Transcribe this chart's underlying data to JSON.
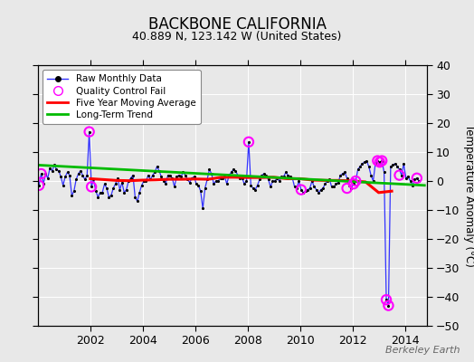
{
  "title": "BACKBONE CALIFORNIA",
  "subtitle": "40.889 N, 123.142 W (United States)",
  "ylabel": "Temperature Anomaly (°C)",
  "watermark": "Berkeley Earth",
  "xlim": [
    2000.0,
    2014.83
  ],
  "ylim": [
    -50,
    40
  ],
  "yticks": [
    -50,
    -40,
    -30,
    -20,
    -10,
    0,
    10,
    20,
    30,
    40
  ],
  "xticks": [
    2002,
    2004,
    2006,
    2008,
    2010,
    2012,
    2014
  ],
  "bg_color": "#e8e8e8",
  "raw_line_color": "#3333ff",
  "dot_color": "#000000",
  "qc_color": "#ff00ff",
  "moving_avg_color": "#ff0000",
  "trend_color": "#00bb00",
  "raw_x": [
    2000.042,
    2000.125,
    2000.208,
    2000.292,
    2000.375,
    2000.458,
    2000.542,
    2000.625,
    2000.708,
    2000.792,
    2000.875,
    2000.958,
    2001.042,
    2001.125,
    2001.208,
    2001.292,
    2001.375,
    2001.458,
    2001.542,
    2001.625,
    2001.708,
    2001.792,
    2001.875,
    2001.958,
    2002.042,
    2002.125,
    2002.208,
    2002.292,
    2002.375,
    2002.458,
    2002.542,
    2002.625,
    2002.708,
    2002.792,
    2002.875,
    2002.958,
    2003.042,
    2003.125,
    2003.208,
    2003.292,
    2003.375,
    2003.458,
    2003.542,
    2003.625,
    2003.708,
    2003.792,
    2003.875,
    2003.958,
    2004.042,
    2004.125,
    2004.208,
    2004.292,
    2004.375,
    2004.458,
    2004.542,
    2004.625,
    2004.708,
    2004.792,
    2004.875,
    2004.958,
    2005.042,
    2005.125,
    2005.208,
    2005.292,
    2005.375,
    2005.458,
    2005.542,
    2005.625,
    2005.708,
    2005.792,
    2005.875,
    2005.958,
    2006.042,
    2006.125,
    2006.208,
    2006.292,
    2006.375,
    2006.458,
    2006.542,
    2006.625,
    2006.708,
    2006.792,
    2006.875,
    2006.958,
    2007.042,
    2007.125,
    2007.208,
    2007.292,
    2007.375,
    2007.458,
    2007.542,
    2007.625,
    2007.708,
    2007.792,
    2007.875,
    2007.958,
    2008.042,
    2008.125,
    2008.208,
    2008.292,
    2008.375,
    2008.458,
    2008.542,
    2008.625,
    2008.708,
    2008.792,
    2008.875,
    2008.958,
    2009.042,
    2009.125,
    2009.208,
    2009.292,
    2009.375,
    2009.458,
    2009.542,
    2009.625,
    2009.708,
    2009.792,
    2009.875,
    2009.958,
    2010.042,
    2010.125,
    2010.208,
    2010.292,
    2010.375,
    2010.458,
    2010.542,
    2010.625,
    2010.708,
    2010.792,
    2010.875,
    2010.958,
    2011.042,
    2011.125,
    2011.208,
    2011.292,
    2011.375,
    2011.458,
    2011.542,
    2011.625,
    2011.708,
    2011.792,
    2011.875,
    2011.958,
    2012.042,
    2012.125,
    2012.208,
    2012.292,
    2012.375,
    2012.458,
    2012.542,
    2012.625,
    2012.708,
    2012.792,
    2012.875,
    2012.958,
    2013.042,
    2013.125,
    2013.208,
    2013.292,
    2013.375,
    2013.458,
    2013.542,
    2013.625,
    2013.708,
    2013.792,
    2013.875,
    2013.958,
    2014.042,
    2014.125,
    2014.208,
    2014.292,
    2014.375,
    2014.458,
    2014.542
  ],
  "raw_y": [
    -1.5,
    2.5,
    -1.0,
    2.5,
    1.0,
    4.5,
    3.5,
    5.5,
    4.0,
    3.5,
    1.5,
    -1.5,
    1.5,
    3.0,
    2.0,
    -5.0,
    -3.5,
    0.5,
    2.5,
    3.5,
    2.0,
    0.5,
    2.0,
    17.0,
    -2.0,
    0.5,
    -3.5,
    -5.5,
    -4.0,
    -4.0,
    -1.0,
    -2.5,
    -5.5,
    -5.0,
    -2.5,
    -1.0,
    1.0,
    -3.0,
    -0.5,
    -4.0,
    -3.0,
    0.0,
    1.0,
    2.0,
    -5.5,
    -7.0,
    -4.0,
    -1.5,
    0.0,
    0.0,
    2.0,
    0.5,
    2.0,
    3.0,
    5.0,
    3.5,
    1.5,
    0.0,
    -1.0,
    2.0,
    2.0,
    1.0,
    -2.0,
    1.5,
    2.0,
    1.5,
    3.0,
    2.0,
    0.5,
    -0.5,
    1.0,
    1.5,
    -1.0,
    -1.5,
    -3.5,
    -9.5,
    -2.5,
    0.5,
    4.0,
    2.5,
    -1.0,
    0.0,
    0.0,
    1.0,
    1.0,
    1.5,
    -1.0,
    2.0,
    3.0,
    4.0,
    3.5,
    2.0,
    1.0,
    1.0,
    -1.0,
    0.0,
    13.5,
    -1.5,
    -2.5,
    -3.0,
    -1.5,
    0.5,
    2.0,
    2.5,
    2.0,
    0.5,
    -2.0,
    0.0,
    0.0,
    1.0,
    0.0,
    1.5,
    1.5,
    3.0,
    2.0,
    1.5,
    1.0,
    -2.0,
    -2.5,
    0.0,
    -3.0,
    -4.0,
    -3.5,
    -3.0,
    -2.5,
    0.0,
    -2.0,
    -3.0,
    -4.0,
    -3.0,
    -2.5,
    -1.0,
    0.0,
    0.5,
    -2.0,
    -2.0,
    -1.0,
    -0.5,
    2.0,
    2.5,
    3.0,
    1.0,
    -1.5,
    -2.5,
    -1.0,
    0.0,
    4.0,
    5.0,
    6.0,
    6.5,
    7.0,
    5.0,
    2.0,
    0.0,
    6.0,
    7.0,
    6.5,
    7.0,
    3.0,
    -41.0,
    -43.0,
    5.0,
    5.5,
    6.0,
    5.0,
    4.0,
    2.0,
    6.0,
    1.0,
    1.5,
    0.0,
    -1.5,
    0.5,
    1.0,
    0.0
  ],
  "qc_x": [
    2000.042,
    2000.125,
    2001.958,
    2002.042,
    2008.042,
    2010.042,
    2011.792,
    2012.042,
    2012.125,
    2012.958,
    2013.042,
    2013.125,
    2013.292,
    2013.375,
    2013.792,
    2014.458
  ],
  "qc_y": [
    -1.5,
    2.5,
    17.0,
    -2.0,
    13.5,
    -3.0,
    -2.5,
    -1.0,
    0.0,
    7.0,
    6.5,
    7.0,
    -41.0,
    -43.0,
    2.0,
    1.0
  ],
  "moving_avg_x": [
    2002.0,
    2002.5,
    2003.0,
    2003.5,
    2004.0,
    2004.5,
    2005.0,
    2005.5,
    2006.0,
    2006.5,
    2007.0,
    2007.5,
    2008.0,
    2008.5,
    2009.0,
    2009.5,
    2010.0,
    2010.5,
    2011.0,
    2011.5,
    2012.0,
    2012.5,
    2013.0,
    2013.5
  ],
  "moving_avg_y": [
    0.8,
    0.5,
    0.2,
    0.1,
    0.3,
    0.4,
    0.6,
    0.6,
    0.7,
    0.6,
    1.3,
    1.3,
    1.2,
    1.2,
    1.3,
    0.8,
    0.8,
    0.3,
    0.2,
    0.2,
    0.0,
    -0.3,
    -4.0,
    -3.5
  ],
  "trend_x": [
    2000.0,
    2014.75
  ],
  "trend_y": [
    5.5,
    -1.5
  ]
}
